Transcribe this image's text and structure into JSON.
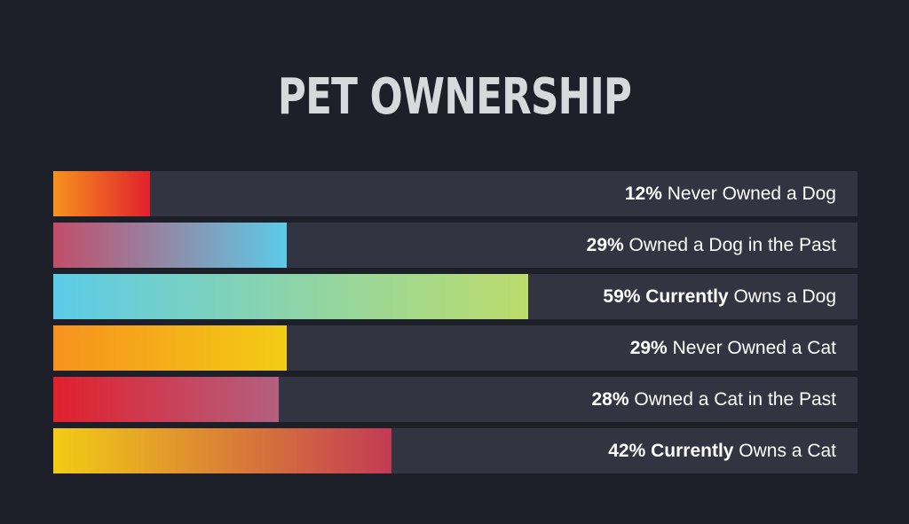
{
  "title": "PET OWNERSHIP",
  "chart_data": {
    "type": "bar",
    "orientation": "horizontal",
    "title": "PET OWNERSHIP",
    "xlim": [
      0,
      100
    ],
    "unit": "%",
    "categories": [
      "Never Owned a Dog",
      "Owned a Dog in the Past",
      "Currently Owns a Dog",
      "Never Owned a Cat",
      "Owned a Cat in the Past",
      "Currently Owns a Cat"
    ],
    "values": [
      12,
      29,
      59,
      29,
      28,
      42
    ],
    "bars": [
      {
        "pct": "12%",
        "bold": "",
        "rest": " Never Owned a Dog",
        "value": 12,
        "colors": [
          "#f7921e",
          "#e1202d"
        ]
      },
      {
        "pct": "29%",
        "bold": "",
        "rest": " Owned a Dog in the Past",
        "value": 29,
        "colors": [
          "#c24d6a",
          "#5ccbe8"
        ]
      },
      {
        "pct": "59%",
        "bold": " Currently",
        "rest": " Owns a Dog",
        "value": 59,
        "colors": [
          "#5ccbe8",
          "#bcdc6c"
        ]
      },
      {
        "pct": "29%",
        "bold": "",
        "rest": " Never Owned a Cat",
        "value": 29,
        "colors": [
          "#f7921e",
          "#f2cc15"
        ]
      },
      {
        "pct": "28%",
        "bold": "",
        "rest": " Owned a Cat in the Past",
        "value": 28,
        "colors": [
          "#e1202d",
          "#b36080"
        ]
      },
      {
        "pct": "42%",
        "bold": " Currently",
        "rest": " Owns a Cat",
        "value": 42,
        "colors": [
          "#f2cc15",
          "#c33a55"
        ]
      }
    ],
    "background_color": "#1d1f29",
    "track_color": "#323541",
    "text_color": "#ffffff",
    "grid": false,
    "legend": "none"
  }
}
